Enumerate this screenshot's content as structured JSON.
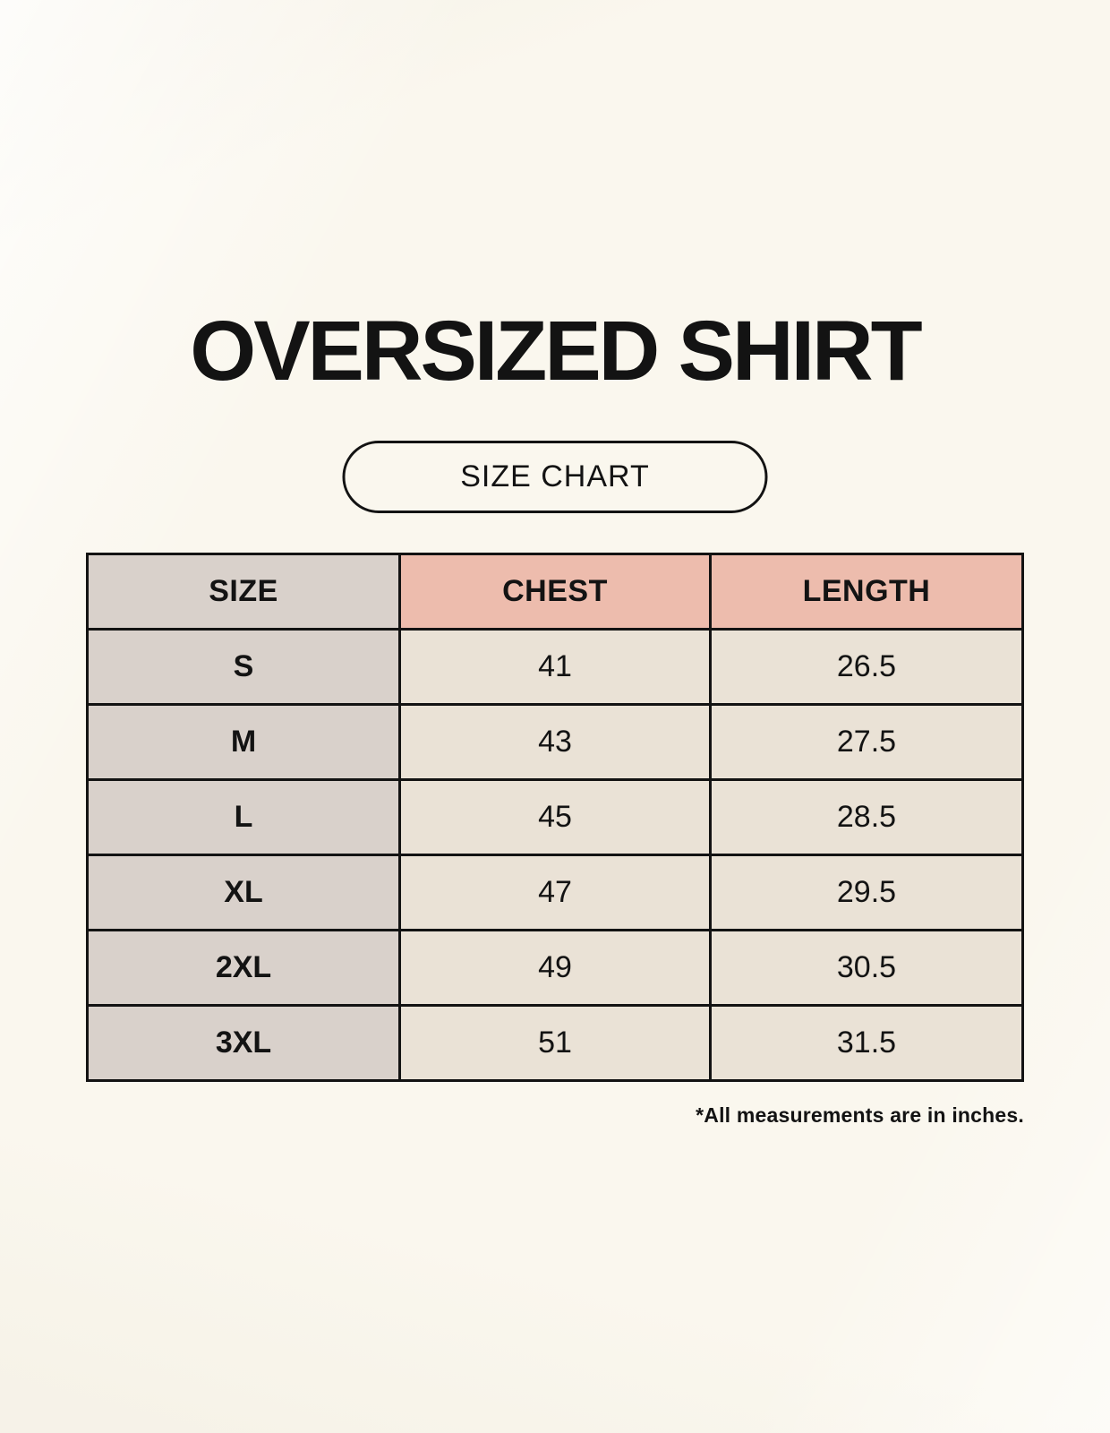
{
  "page": {
    "title": "OVERSIZED SHIRT",
    "size_chart_label": "SIZE CHART",
    "footnote": "*All measurements are in inches."
  },
  "colors": {
    "page_bg": "#faf7ee",
    "ink": "#131313",
    "table_border": "#131313",
    "size_col_bg": "#d9d1cb",
    "accent_header_bg": "#edbcad",
    "value_cell_bg": "#eae2d6"
  },
  "chart_data": {
    "type": "table",
    "title": "OVERSIZED SHIRT",
    "columns": [
      "SIZE",
      "CHEST",
      "LENGTH"
    ],
    "rows": [
      {
        "size": "S",
        "chest": "41",
        "length": "26.5"
      },
      {
        "size": "M",
        "chest": "43",
        "length": "27.5"
      },
      {
        "size": "L",
        "chest": "45",
        "length": "28.5"
      },
      {
        "size": "XL",
        "chest": "47",
        "length": "29.5"
      },
      {
        "size": "2XL",
        "chest": "49",
        "length": "30.5"
      },
      {
        "size": "3XL",
        "chest": "51",
        "length": "31.5"
      }
    ],
    "units_note": "*All measurements are in inches."
  }
}
